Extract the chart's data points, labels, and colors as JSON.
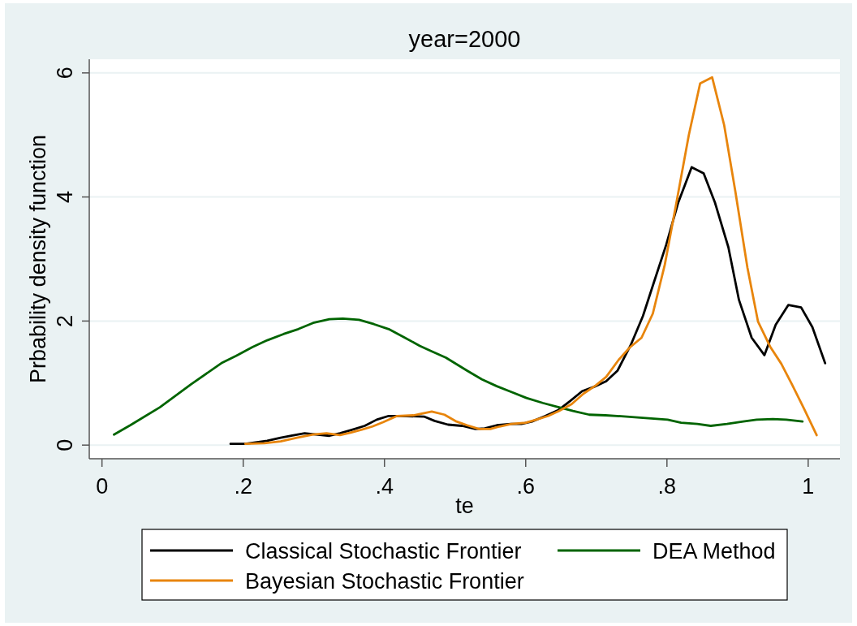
{
  "chart_data": {
    "type": "line",
    "title": "year=2000",
    "xlabel": "te",
    "ylabel": "Prbability density function",
    "xlim": [
      -0.018,
      1.045
    ],
    "ylim": [
      -0.22,
      6.22
    ],
    "xticks": [
      0,
      {
        "value": 0.2,
        "label": ".2"
      },
      {
        "value": 0.4,
        "label": ".4"
      },
      {
        "value": 0.6,
        "label": ".6"
      },
      {
        "value": 0.8,
        "label": ".8"
      },
      1
    ],
    "yticks": [
      0,
      2,
      4,
      6
    ],
    "grid": "y",
    "legend": "bottom",
    "series": [
      {
        "name": "Classical Stochastic Frontier",
        "color": "#000000",
        "x": [
          0.182,
          0.203,
          0.234,
          0.253,
          0.268,
          0.287,
          0.303,
          0.322,
          0.337,
          0.352,
          0.372,
          0.389,
          0.406,
          0.421,
          0.456,
          0.471,
          0.49,
          0.51,
          0.529,
          0.542,
          0.559,
          0.579,
          0.594,
          0.609,
          0.628,
          0.647,
          0.663,
          0.68,
          0.697,
          0.714,
          0.73,
          0.749,
          0.766,
          0.782,
          0.799,
          0.816,
          0.835,
          0.852,
          0.868,
          0.887,
          0.902,
          0.92,
          0.938,
          0.954,
          0.972,
          0.99,
          1.006,
          1.024
        ],
        "values": [
          0.02,
          0.02,
          0.07,
          0.12,
          0.15,
          0.19,
          0.17,
          0.15,
          0.19,
          0.24,
          0.31,
          0.41,
          0.47,
          0.47,
          0.46,
          0.39,
          0.33,
          0.31,
          0.26,
          0.27,
          0.32,
          0.34,
          0.34,
          0.38,
          0.47,
          0.57,
          0.71,
          0.87,
          0.94,
          1.03,
          1.2,
          1.62,
          2.08,
          2.64,
          3.23,
          3.91,
          4.48,
          4.38,
          3.91,
          3.19,
          2.34,
          1.73,
          1.45,
          1.94,
          2.26,
          2.22,
          1.9,
          1.32
        ]
      },
      {
        "name": "DEA Method",
        "color": "#006400",
        "x": [
          0.017,
          0.04,
          0.082,
          0.126,
          0.169,
          0.19,
          0.213,
          0.234,
          0.257,
          0.278,
          0.299,
          0.322,
          0.341,
          0.364,
          0.385,
          0.406,
          0.429,
          0.45,
          0.467,
          0.487,
          0.517,
          0.538,
          0.559,
          0.579,
          0.601,
          0.624,
          0.647,
          0.667,
          0.69,
          0.713,
          0.743,
          0.766,
          0.801,
          0.82,
          0.843,
          0.862,
          0.885,
          0.908,
          0.927,
          0.95,
          0.969,
          0.992
        ],
        "values": [
          0.17,
          0.32,
          0.61,
          0.98,
          1.32,
          1.44,
          1.58,
          1.69,
          1.79,
          1.87,
          1.97,
          2.03,
          2.04,
          2.02,
          1.95,
          1.87,
          1.73,
          1.6,
          1.51,
          1.41,
          1.2,
          1.06,
          0.95,
          0.86,
          0.76,
          0.68,
          0.61,
          0.55,
          0.49,
          0.48,
          0.46,
          0.44,
          0.41,
          0.36,
          0.34,
          0.31,
          0.34,
          0.38,
          0.41,
          0.42,
          0.41,
          0.38
        ]
      },
      {
        "name": "Bayesian Stochastic Frontier",
        "color": "#e8850c",
        "x": [
          0.203,
          0.23,
          0.253,
          0.276,
          0.299,
          0.318,
          0.337,
          0.352,
          0.368,
          0.383,
          0.398,
          0.418,
          0.441,
          0.467,
          0.485,
          0.502,
          0.517,
          0.534,
          0.55,
          0.563,
          0.58,
          0.6,
          0.615,
          0.632,
          0.647,
          0.665,
          0.682,
          0.699,
          0.714,
          0.732,
          0.747,
          0.764,
          0.78,
          0.797,
          0.812,
          0.831,
          0.847,
          0.864,
          0.881,
          0.897,
          0.914,
          0.929,
          0.946,
          0.962,
          0.977,
          0.994,
          1.012
        ],
        "values": [
          0.02,
          0.03,
          0.06,
          0.12,
          0.17,
          0.19,
          0.16,
          0.2,
          0.25,
          0.3,
          0.37,
          0.47,
          0.48,
          0.54,
          0.49,
          0.38,
          0.32,
          0.26,
          0.26,
          0.3,
          0.34,
          0.36,
          0.41,
          0.47,
          0.55,
          0.66,
          0.83,
          0.96,
          1.1,
          1.38,
          1.57,
          1.73,
          2.12,
          2.91,
          3.82,
          5.0,
          5.83,
          5.93,
          5.16,
          4.08,
          2.86,
          1.99,
          1.59,
          1.31,
          0.98,
          0.59,
          0.16
        ]
      }
    ]
  }
}
